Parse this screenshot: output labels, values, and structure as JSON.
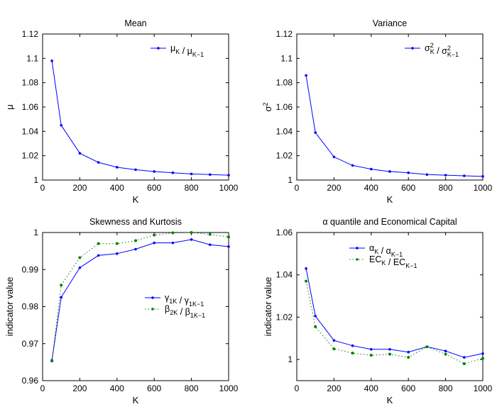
{
  "chart_data": [
    {
      "type": "line",
      "title": "Mean",
      "xlabel": "K",
      "ylabel": "μ",
      "xlim": [
        0,
        1000
      ],
      "ylim": [
        1,
        1.12
      ],
      "xticks": [
        "0",
        "200",
        "400",
        "600",
        "800",
        "1000"
      ],
      "yticks": [
        "1",
        "1.02",
        "1.04",
        "1.06",
        "1.08",
        "1.1",
        "1.12"
      ],
      "legend_position": "top-right",
      "x": [
        50,
        100,
        200,
        300,
        400,
        500,
        600,
        700,
        800,
        900,
        1000
      ],
      "series": [
        {
          "legend": {
            "base1": "μ",
            "sub1": "K",
            "sep": " / ",
            "base2": "μ",
            "sub2": "K−1"
          },
          "color": "#0000ff",
          "style": "solid-dot",
          "values": [
            1.098,
            1.045,
            1.022,
            1.0145,
            1.0105,
            1.0085,
            1.007,
            1.006,
            1.005,
            1.0045,
            1.004
          ]
        }
      ]
    },
    {
      "type": "line",
      "title": "Variance",
      "xlabel": "K",
      "ylabel": "σ2",
      "xlim": [
        0,
        1000
      ],
      "ylim": [
        1,
        1.12
      ],
      "xticks": [
        "0",
        "200",
        "400",
        "600",
        "800",
        "1000"
      ],
      "yticks": [
        "1",
        "1.02",
        "1.04",
        "1.06",
        "1.08",
        "1.1",
        "1.12"
      ],
      "legend_position": "top-right",
      "x": [
        50,
        100,
        200,
        300,
        400,
        500,
        600,
        700,
        800,
        900,
        1000
      ],
      "series": [
        {
          "legend": {
            "base1": "σ",
            "sub1": "K",
            "sup1": "2",
            "sep": " / ",
            "base2": "σ",
            "sub2": "K−1",
            "sup2": "2"
          },
          "color": "#0000ff",
          "style": "solid-dot",
          "values": [
            1.086,
            1.039,
            1.019,
            1.012,
            1.009,
            1.007,
            1.006,
            1.0045,
            1.004,
            1.0035,
            1.003
          ]
        }
      ]
    },
    {
      "type": "line",
      "title": "Skewness and Kurtosis",
      "xlabel": "K",
      "ylabel": "indicator value",
      "xlim": [
        0,
        1000
      ],
      "ylim": [
        0.96,
        1
      ],
      "xticks": [
        "0",
        "200",
        "400",
        "600",
        "800",
        "1000"
      ],
      "yticks": [
        "0.96",
        "0.97",
        "0.98",
        "0.99",
        "1"
      ],
      "legend_position": "center-right",
      "x": [
        50,
        100,
        200,
        300,
        400,
        500,
        600,
        700,
        800,
        900,
        1000
      ],
      "series": [
        {
          "legend": {
            "base1": "γ",
            "sub1": "1K",
            "sep": " / ",
            "base2": "γ",
            "sub2": "1K−1"
          },
          "color": "#0000ff",
          "style": "solid-dot",
          "values": [
            0.9655,
            0.9825,
            0.9905,
            0.9938,
            0.9943,
            0.9955,
            0.9972,
            0.9972,
            0.9981,
            0.9967,
            0.9962
          ]
        },
        {
          "legend": {
            "base1": "β",
            "sub1": "2K",
            "sep": " / ",
            "base2": "β",
            "sub2": "1K−1"
          },
          "color": "#008000",
          "style": "dotted-dot",
          "values": [
            0.9653,
            0.9858,
            0.9932,
            0.997,
            0.997,
            0.9978,
            0.9993,
            0.9999,
            1.0,
            0.9995,
            0.9988
          ]
        }
      ]
    },
    {
      "type": "line",
      "title": "α quantile and Economical Capital",
      "xlabel": "K",
      "ylabel": "indicator value",
      "xlim": [
        0,
        1000
      ],
      "ylim": [
        0.99,
        1.06
      ],
      "xticks": [
        "0",
        "200",
        "400",
        "600",
        "800",
        "1000"
      ],
      "yticks": [
        "1",
        "1.02",
        "1.04",
        "1.06"
      ],
      "legend_position": "top-right",
      "x": [
        50,
        100,
        200,
        300,
        400,
        500,
        600,
        700,
        800,
        900,
        1000
      ],
      "series": [
        {
          "legend": {
            "base1": "α",
            "sub1": "K",
            "sep": " / ",
            "base2": "α",
            "sub2": "K−1"
          },
          "color": "#0000ff",
          "style": "solid-dot",
          "values": [
            1.043,
            1.0205,
            1.009,
            1.0065,
            1.0048,
            1.0048,
            1.0035,
            1.006,
            1.004,
            1.001,
            1.0028
          ]
        },
        {
          "legend": {
            "base1": "EC",
            "sub1": "K",
            "sep": " / ",
            "base2": "EC",
            "sub2": "K−1"
          },
          "color": "#008000",
          "style": "dotted-dot",
          "values": [
            1.037,
            1.0155,
            1.005,
            1.003,
            1.002,
            1.0025,
            1.001,
            1.006,
            1.0025,
            0.998,
            1.0005
          ]
        }
      ]
    }
  ]
}
